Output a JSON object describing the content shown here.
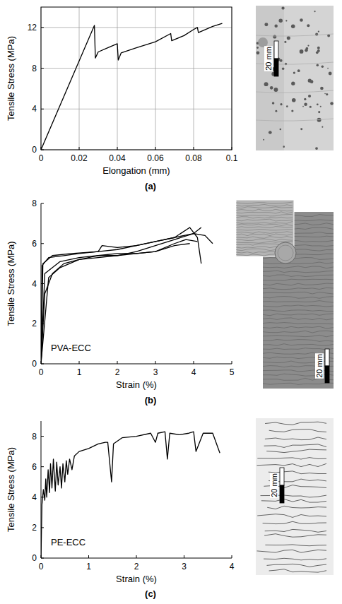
{
  "chart_data": [
    {
      "type": "line",
      "panel": "(a)",
      "xlabel": "Elongation (mm)",
      "ylabel": "Tensile Stress (MPa)",
      "xlim": [
        0,
        0.1
      ],
      "xticks": [
        0,
        0.02,
        0.04,
        0.06,
        0.08,
        0.1
      ],
      "ylim": [
        0,
        14
      ],
      "yticks": [
        0,
        4,
        8,
        12
      ],
      "grid": true,
      "scale_bar_label": "20 mm",
      "series": [
        {
          "color": "#000000",
          "x": [
            0,
            0.028,
            0.0285,
            0.03,
            0.035,
            0.04,
            0.0405,
            0.042,
            0.05,
            0.06,
            0.068,
            0.0685,
            0.075,
            0.08,
            0.082,
            0.0825,
            0.09,
            0.095
          ],
          "values": [
            0,
            12.2,
            9.0,
            9.6,
            10.0,
            10.4,
            8.8,
            9.5,
            10.0,
            10.6,
            11.4,
            10.7,
            11.2,
            11.8,
            12.0,
            11.5,
            12.1,
            12.4
          ]
        }
      ]
    },
    {
      "type": "line",
      "panel": "(b)",
      "xlabel": "Strain (%)",
      "ylabel": "Tensile Stress (MPa)",
      "annotation": "PVA-ECC",
      "xlim": [
        0,
        5
      ],
      "xticks": [
        0,
        1,
        2,
        3,
        4,
        5
      ],
      "ylim": [
        0,
        8
      ],
      "yticks": [
        0,
        2,
        4,
        6,
        8
      ],
      "grid": false,
      "scale_bar_label": "20 mm",
      "series": [
        {
          "color": "#000000",
          "x": [
            0,
            0.03,
            0.2,
            0.6,
            1.0,
            1.5,
            2.0,
            2.5,
            3.0,
            3.5,
            3.9,
            4.1,
            4.2
          ],
          "values": [
            0,
            4.9,
            5.3,
            5.4,
            5.5,
            5.6,
            5.7,
            5.9,
            6.1,
            6.3,
            6.8,
            6.3,
            5.0
          ]
        },
        {
          "color": "#000000",
          "x": [
            0,
            0.05,
            0.3,
            0.8,
            1.5,
            1.6,
            2.0,
            2.5,
            3.0,
            3.5,
            4.0,
            4.3,
            4.5
          ],
          "values": [
            0,
            5.0,
            5.4,
            5.5,
            5.6,
            5.9,
            5.8,
            5.9,
            6.1,
            6.3,
            6.5,
            6.4,
            6.0
          ]
        },
        {
          "color": "#000000",
          "x": [
            0,
            0.1,
            0.5,
            1.0,
            1.5,
            2.0,
            2.5,
            3.0,
            3.5,
            3.9
          ],
          "values": [
            0,
            4.5,
            5.1,
            5.3,
            5.4,
            5.5,
            5.5,
            5.6,
            5.9,
            6.0
          ]
        },
        {
          "color": "#000000",
          "x": [
            0,
            0.1,
            0.3,
            0.6,
            1.0,
            1.5,
            2.0,
            2.5,
            3.0,
            3.5,
            4.0,
            4.2
          ],
          "values": [
            0,
            3.5,
            4.5,
            5.0,
            5.2,
            5.3,
            5.4,
            5.6,
            5.9,
            6.2,
            6.5,
            6.8
          ]
        },
        {
          "color": "#000000",
          "x": [
            0,
            0.2,
            0.5,
            1.0,
            1.5,
            2.0,
            2.5,
            3.0,
            3.5,
            3.8,
            4.1
          ],
          "values": [
            0,
            4.3,
            4.8,
            5.2,
            5.4,
            5.4,
            5.5,
            5.6,
            6.0,
            6.2,
            6.1
          ]
        }
      ]
    },
    {
      "type": "line",
      "panel": "(c)",
      "xlabel": "Strain (%)",
      "ylabel": "Tensile Stress (MPa)",
      "annotation": "PE-ECC",
      "xlim": [
        0,
        4
      ],
      "xticks": [
        0,
        1,
        2,
        3,
        4
      ],
      "ylim": [
        0,
        9
      ],
      "yticks": [
        0,
        2,
        4,
        6,
        8
      ],
      "grid": false,
      "scale_bar_label": "20 mm",
      "series": [
        {
          "color": "#000000",
          "x": [
            0,
            0.02,
            0.05,
            0.08,
            0.1,
            0.12,
            0.15,
            0.18,
            0.2,
            0.23,
            0.26,
            0.3,
            0.33,
            0.36,
            0.4,
            0.43,
            0.46,
            0.5,
            0.53,
            0.56,
            0.6,
            0.65,
            0.7,
            0.8,
            1.0,
            1.2,
            1.35,
            1.4,
            1.48,
            1.52,
            1.7,
            2.0,
            2.3,
            2.4,
            2.45,
            2.6,
            2.65,
            2.7,
            2.9,
            3.1,
            3.2,
            3.25,
            3.4,
            3.6,
            3.75
          ],
          "values": [
            0,
            3.5,
            4.5,
            3.8,
            5.2,
            4.0,
            5.8,
            4.3,
            6.2,
            4.6,
            6.5,
            4.4,
            6.3,
            4.8,
            6.0,
            4.6,
            6.2,
            5.0,
            6.4,
            5.5,
            6.5,
            5.8,
            6.7,
            7.0,
            7.2,
            7.5,
            7.6,
            7.6,
            5.0,
            7.5,
            7.9,
            8.0,
            8.2,
            7.6,
            8.2,
            8.3,
            6.5,
            8.2,
            8.1,
            8.2,
            8.3,
            7.0,
            8.2,
            8.2,
            6.9
          ]
        }
      ]
    }
  ]
}
